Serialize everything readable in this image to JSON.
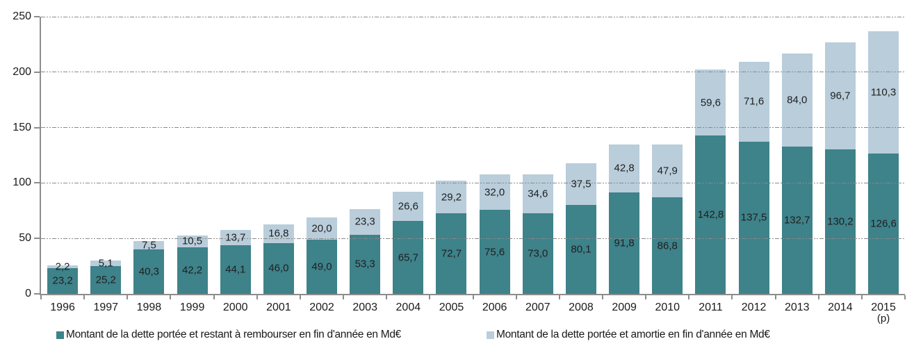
{
  "chart_data": {
    "type": "bar",
    "stacked": true,
    "title": "",
    "xlabel": "",
    "ylabel": "",
    "categories": [
      "1996",
      "1997",
      "1998",
      "1999",
      "2000",
      "2001",
      "2002",
      "2003",
      "2004",
      "2005",
      "2006",
      "2007",
      "2008",
      "2009",
      "2010",
      "2011",
      "2012",
      "2013",
      "2014",
      "2015"
    ],
    "category_footnote": {
      "index": 19,
      "text": "(p)"
    },
    "series": [
      {
        "name": "Montant de la dette portée et restant à rembourser en fin d'année en Md€",
        "color": "#3E828A",
        "values": [
          23.2,
          25.2,
          40.3,
          42.2,
          44.1,
          46.0,
          49.0,
          53.3,
          65.7,
          72.7,
          75.6,
          73.0,
          80.1,
          91.8,
          86.8,
          142.8,
          137.5,
          132.7,
          130.2,
          126.6
        ]
      },
      {
        "name": "Montant de la dette portée et amortie en fin d'année en Md€",
        "color": "#B9CDDB",
        "values": [
          2.2,
          5.1,
          7.5,
          10.5,
          13.7,
          16.8,
          20.0,
          23.3,
          26.6,
          29.2,
          32.0,
          34.6,
          37.5,
          42.8,
          47.9,
          59.6,
          71.6,
          84.0,
          96.7,
          110.3
        ]
      }
    ],
    "ylim": [
      0,
      250
    ],
    "yticks": [
      0,
      50,
      100,
      150,
      200,
      250
    ],
    "grid": "horizontal-dash-dot",
    "legend_position": "bottom",
    "decimal_separator": ",",
    "value_labels": "centered-in-segment",
    "axis_color": "#8c8c8c",
    "grid_color": "#8a8a8a",
    "text_color": "#1a1a1a"
  }
}
